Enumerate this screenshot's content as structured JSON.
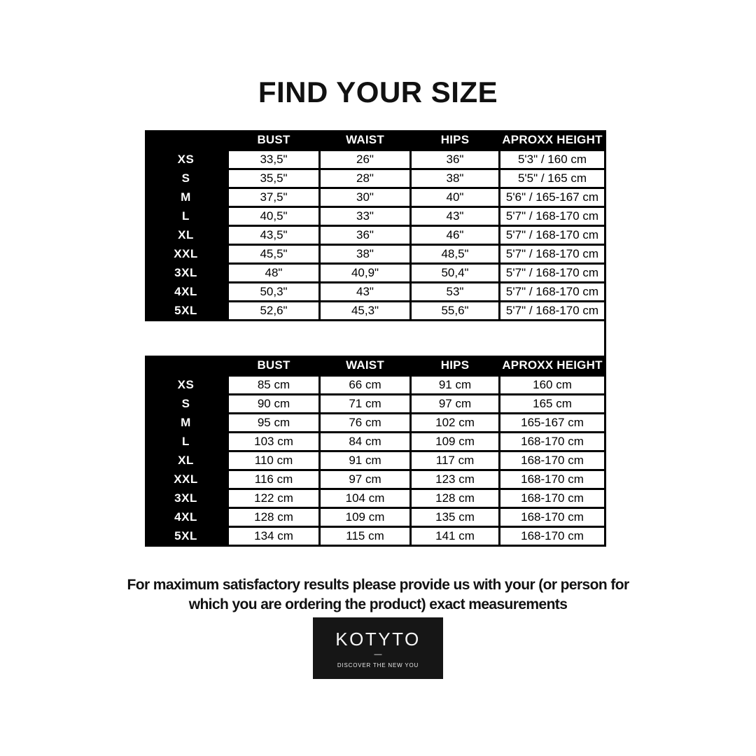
{
  "title": "FIND YOUR SIZE",
  "tables": [
    {
      "unit": "inches",
      "headers": [
        "BUST",
        "WAIST",
        "HIPS",
        "APROXX HEIGHT"
      ],
      "rows": [
        {
          "size": "XS",
          "values": [
            "33,5\"",
            "26\"",
            "36\"",
            "5'3\" / 160 cm"
          ]
        },
        {
          "size": "S",
          "values": [
            "35,5\"",
            "28\"",
            "38\"",
            "5'5\" / 165 cm"
          ]
        },
        {
          "size": "M",
          "values": [
            "37,5\"",
            "30\"",
            "40\"",
            "5'6\" / 165-167 cm"
          ]
        },
        {
          "size": "L",
          "values": [
            "40,5\"",
            "33\"",
            "43\"",
            "5'7\" / 168-170 cm"
          ]
        },
        {
          "size": "XL",
          "values": [
            "43,5\"",
            "36\"",
            "46\"",
            "5'7\" / 168-170 cm"
          ]
        },
        {
          "size": "XXL",
          "values": [
            "45,5\"",
            "38\"",
            "48,5\"",
            "5'7\" / 168-170 cm"
          ]
        },
        {
          "size": "3XL",
          "values": [
            "48\"",
            "40,9\"",
            "50,4\"",
            "5'7\" / 168-170 cm"
          ]
        },
        {
          "size": "4XL",
          "values": [
            "50,3\"",
            "43\"",
            "53\"",
            "5'7\" / 168-170 cm"
          ]
        },
        {
          "size": "5XL",
          "values": [
            "52,6\"",
            "45,3\"",
            "55,6\"",
            "5'7\" / 168-170 cm"
          ]
        }
      ]
    },
    {
      "unit": "cm",
      "headers": [
        "BUST",
        "WAIST",
        "HIPS",
        "APROXX HEIGHT"
      ],
      "rows": [
        {
          "size": "XS",
          "values": [
            "85 cm",
            "66 cm",
            "91 cm",
            "160 cm"
          ]
        },
        {
          "size": "S",
          "values": [
            "90 cm",
            "71 cm",
            "97 cm",
            "165 cm"
          ]
        },
        {
          "size": "M",
          "values": [
            "95 cm",
            "76 cm",
            "102 cm",
            "165-167 cm"
          ]
        },
        {
          "size": "L",
          "values": [
            "103 cm",
            "84 cm",
            "109 cm",
            "168-170 cm"
          ]
        },
        {
          "size": "XL",
          "values": [
            "110 cm",
            "91 cm",
            "117 cm",
            "168-170 cm"
          ]
        },
        {
          "size": "XXL",
          "values": [
            "116 cm",
            "97 cm",
            "123 cm",
            "168-170 cm"
          ]
        },
        {
          "size": "3XL",
          "values": [
            "122 cm",
            "104 cm",
            "128 cm",
            "168-170 cm"
          ]
        },
        {
          "size": "4XL",
          "values": [
            "128 cm",
            "109 cm",
            "135 cm",
            "168-170 cm"
          ]
        },
        {
          "size": "5XL",
          "values": [
            "134 cm",
            "115 cm",
            "141 cm",
            "168-170 cm"
          ]
        }
      ]
    }
  ],
  "note": {
    "line1": "For maximum satisfactory results please provide us with your (or person for",
    "line2": "which you are ordering the product) exact measurements"
  },
  "logo": {
    "brand": "KOTYTO",
    "dash": "—",
    "tagline": "DISCOVER THE NEW YOU"
  },
  "colors": {
    "page_background": "#ffffff",
    "table_background": "#000000",
    "cell_background": "#ffffff",
    "header_text": "#ffffff",
    "cell_text": "#000000",
    "logo_background": "#161616",
    "logo_text": "#f7f7f7"
  }
}
